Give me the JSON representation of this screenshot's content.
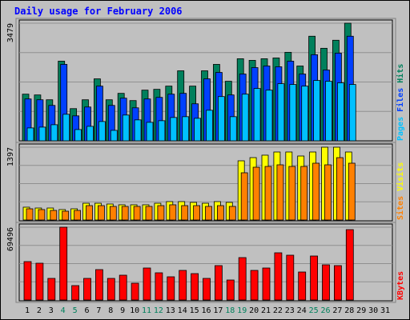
{
  "chart_data": [
    {
      "type": "bar",
      "title": "Daily usage for February 2006",
      "ylim": [
        0,
        3479
      ],
      "yticks": [
        3479
      ],
      "series": [
        {
          "name": "Hits",
          "color": "#00805c",
          "values": [
            1380,
            1357,
            1214,
            2356,
            952,
            1214,
            1833,
            1214,
            1404,
            1190,
            1499,
            1523,
            1618,
            2071,
            1618,
            2071,
            2261,
            1761,
            2428,
            2380,
            2428,
            2451,
            2618,
            2213,
            3094,
            2737,
            2975,
            3479,
            null,
            null,
            null
          ]
        },
        {
          "name": "Files",
          "color": "#0040ff",
          "values": [
            1238,
            1214,
            1047,
            2261,
            738,
            1000,
            1618,
            1047,
            1261,
            976,
            1238,
            1285,
            1380,
            1404,
            1095,
            1833,
            2023,
            1357,
            1975,
            2166,
            2213,
            2190,
            2356,
            1975,
            2547,
            2094,
            2594,
            3094,
            null,
            null,
            null
          ]
        },
        {
          "name": "Pages",
          "color": "#00c0ff",
          "values": [
            381,
            405,
            476,
            785,
            333,
            428,
            571,
            309,
            762,
            619,
            547,
            595,
            690,
            714,
            666,
            904,
            1309,
            714,
            1380,
            1547,
            1499,
            1690,
            1666,
            1618,
            1785,
            1761,
            1714,
            1666,
            null,
            null,
            null
          ]
        }
      ]
    },
    {
      "type": "bar",
      "ylim": [
        0,
        1397
      ],
      "yticks": [
        1397
      ],
      "series": [
        {
          "name": "Visits",
          "color": "#ffff00",
          "values": [
            246,
            230,
            230,
            200,
            215,
            322,
            322,
            307,
            292,
            292,
            292,
            322,
            353,
            353,
            338,
            322,
            353,
            338,
            1136,
            1197,
            1244,
            1305,
            1305,
            1228,
            1305,
            1397,
            1397,
            1305,
            null,
            null,
            null
          ]
        },
        {
          "name": "Sites",
          "color": "#ff8000",
          "values": [
            215,
            200,
            184,
            169,
            184,
            276,
            276,
            261,
            261,
            261,
            261,
            276,
            292,
            276,
            276,
            261,
            276,
            261,
            906,
            1013,
            1028,
            1059,
            1028,
            1028,
            1090,
            1059,
            1197,
            1090,
            null,
            null,
            null
          ]
        }
      ]
    },
    {
      "type": "bar",
      "ylim": [
        0,
        69496
      ],
      "yticks": [
        69496
      ],
      "categories": [
        1,
        2,
        3,
        4,
        5,
        6,
        7,
        8,
        9,
        10,
        11,
        12,
        13,
        14,
        15,
        16,
        17,
        18,
        19,
        20,
        21,
        22,
        23,
        24,
        25,
        26,
        27,
        28,
        29,
        30,
        31
      ],
      "highlight_categories": [
        4,
        5,
        11,
        12,
        18,
        19,
        25,
        26
      ],
      "highlight_color": "#00805c",
      "series": [
        {
          "name": "KBytes",
          "color": "#ff0000",
          "values": [
            36660,
            35130,
            20620,
            69496,
            13750,
            20620,
            29020,
            20620,
            23680,
            16040,
            30550,
            25970,
            22150,
            28260,
            25200,
            20620,
            32840,
            19090,
            40480,
            28260,
            30550,
            45060,
            42770,
            26730,
            42000,
            33600,
            32840,
            67200,
            null,
            null,
            null
          ]
        }
      ]
    }
  ]
}
